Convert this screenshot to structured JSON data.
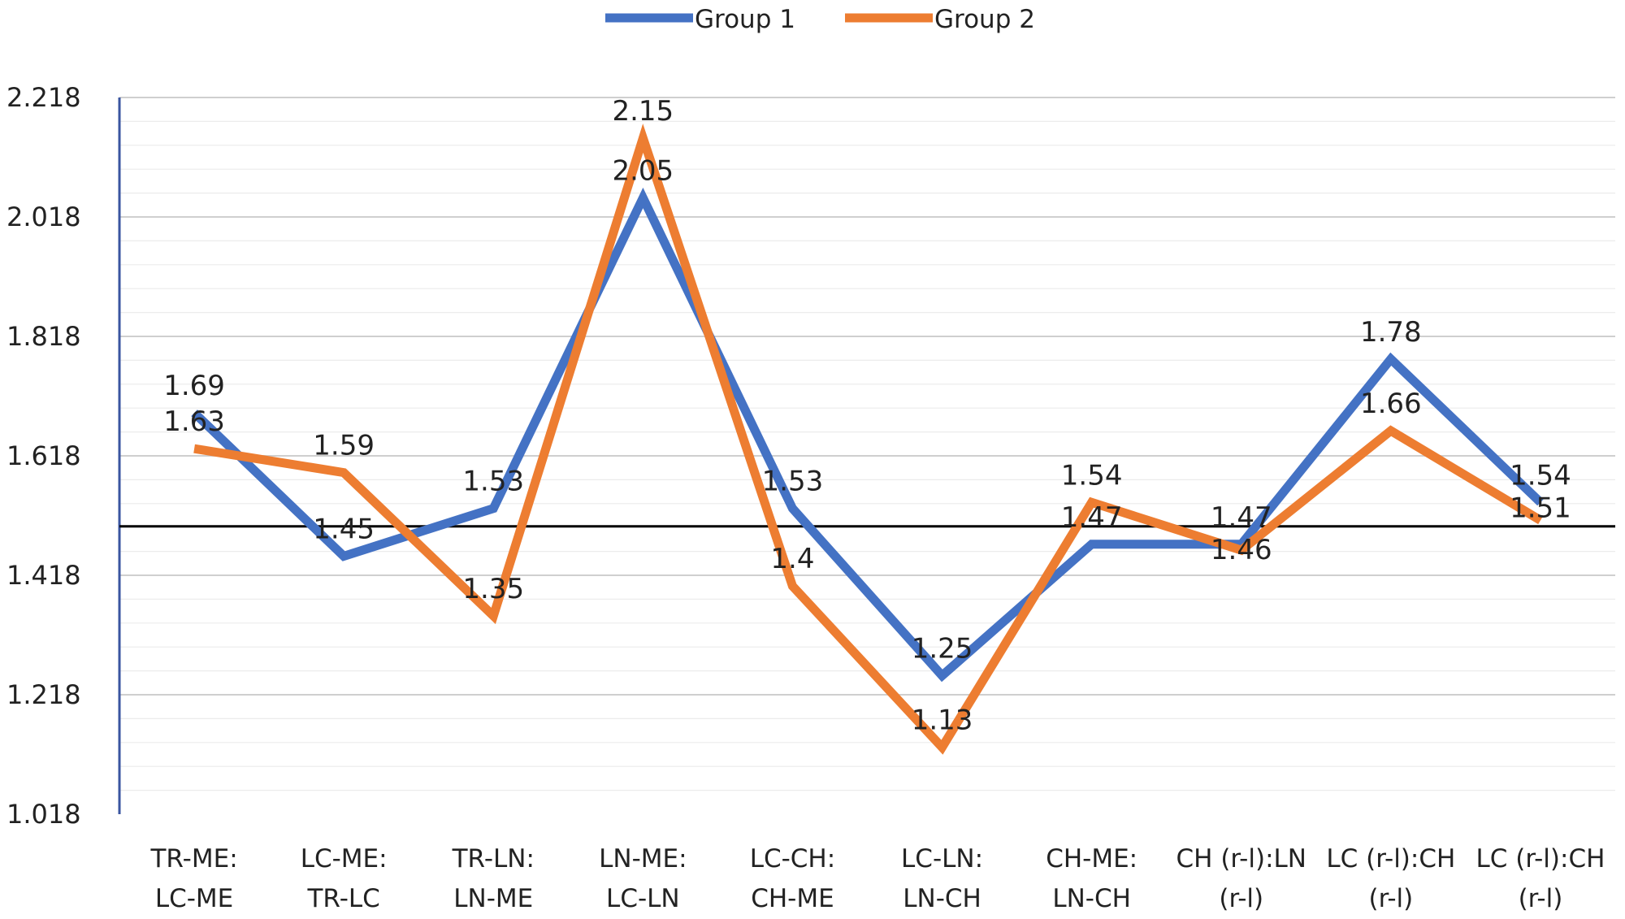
{
  "chart_data": {
    "type": "line",
    "categories": [
      [
        "TR-ME:",
        "LC-ME"
      ],
      [
        "LC-ME:",
        "TR-LC"
      ],
      [
        "TR-LN:",
        "LN-ME"
      ],
      [
        "LN-ME:",
        "LC-LN"
      ],
      [
        "LC-CH:",
        "CH-ME"
      ],
      [
        "LC-LN:",
        "LN-CH"
      ],
      [
        "CH-ME:",
        "LN-CH"
      ],
      [
        "CH (r-l):LN",
        "(r-l)"
      ],
      [
        "LC (r-l):CH",
        "(r-l)"
      ],
      [
        "LC (r-l):CH",
        "(r-l)"
      ]
    ],
    "series": [
      {
        "name": "Group 1",
        "color": "#4472C4",
        "values": [
          1.69,
          1.45,
          1.53,
          2.05,
          1.53,
          1.25,
          1.47,
          1.47,
          1.78,
          1.54
        ]
      },
      {
        "name": "Group 2",
        "color": "#ED7D31",
        "values": [
          1.63,
          1.59,
          1.35,
          2.15,
          1.4,
          1.13,
          1.54,
          1.46,
          1.66,
          1.51
        ]
      }
    ],
    "data_labels": [
      {
        "series": 0,
        "index": 0,
        "text": "1.69"
      },
      {
        "series": 1,
        "index": 0,
        "text": "1.63"
      },
      {
        "series": 1,
        "index": 1,
        "text": "1.59"
      },
      {
        "series": 0,
        "index": 1,
        "text": "1.45"
      },
      {
        "series": 0,
        "index": 2,
        "text": "1.53"
      },
      {
        "series": 1,
        "index": 2,
        "text": "1.35"
      },
      {
        "series": 1,
        "index": 3,
        "text": "2.15"
      },
      {
        "series": 0,
        "index": 3,
        "text": "2.05"
      },
      {
        "series": 0,
        "index": 4,
        "text": "1.53"
      },
      {
        "series": 1,
        "index": 4,
        "text": "1.4"
      },
      {
        "series": 0,
        "index": 5,
        "text": "1.25"
      },
      {
        "series": 1,
        "index": 5,
        "text": "1.13"
      },
      {
        "series": 1,
        "index": 6,
        "text": "1.54"
      },
      {
        "series": 0,
        "index": 6,
        "text": "1.47"
      },
      {
        "series": 0,
        "index": 7,
        "text": "1.47"
      },
      {
        "series": 1,
        "index": 7,
        "text": "1.46"
      },
      {
        "series": 0,
        "index": 8,
        "text": "1.78"
      },
      {
        "series": 1,
        "index": 8,
        "text": "1.66"
      },
      {
        "series": 0,
        "index": 9,
        "text": "1.54"
      },
      {
        "series": 1,
        "index": 9,
        "text": "1.51"
      }
    ],
    "y_ticks": [
      "2.218",
      "2.018",
      "1.818",
      "1.618",
      "1.418",
      "1.218",
      "1.018"
    ],
    "ylim": [
      1.018,
      2.218
    ],
    "reference_line": 1.5,
    "grid": true,
    "legend": "top-center",
    "title": "",
    "xlabel": "",
    "ylabel": ""
  }
}
